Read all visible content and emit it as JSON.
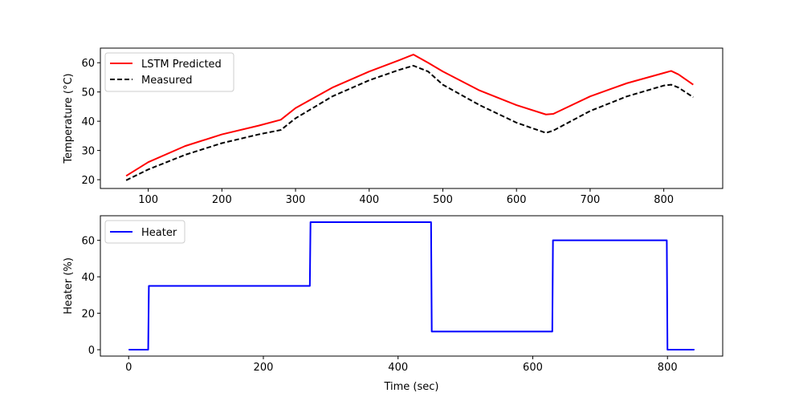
{
  "chart_data": [
    {
      "type": "line",
      "xlim": [
        35,
        880
      ],
      "ylim": [
        17,
        65
      ],
      "xticks": [
        100,
        200,
        300,
        400,
        500,
        600,
        700,
        800
      ],
      "yticks": [
        20,
        30,
        40,
        50,
        60
      ],
      "xlabel": "",
      "ylabel": "Temperature (°C)",
      "grid": false,
      "legend_position": "top-left",
      "series": [
        {
          "name": "LSTM Predicted",
          "color": "#ff0000",
          "style": "solid",
          "x": [
            70,
            100,
            150,
            200,
            250,
            280,
            300,
            350,
            400,
            440,
            460,
            480,
            500,
            550,
            600,
            640,
            650,
            700,
            750,
            800,
            810,
            820,
            840
          ],
          "y": [
            21.3,
            26.0,
            31.5,
            35.5,
            38.5,
            40.5,
            44.5,
            51.5,
            57.0,
            60.8,
            62.8,
            60.0,
            57.0,
            50.5,
            45.5,
            42.3,
            42.5,
            48.5,
            53.0,
            56.5,
            57.2,
            56.0,
            52.5
          ]
        },
        {
          "name": "Measured",
          "color": "#000000",
          "style": "dashed",
          "x": [
            70,
            100,
            150,
            200,
            250,
            280,
            300,
            350,
            400,
            440,
            460,
            480,
            500,
            550,
            600,
            640,
            650,
            700,
            750,
            800,
            810,
            820,
            840
          ],
          "y": [
            19.8,
            23.5,
            28.5,
            32.5,
            35.5,
            37.0,
            41.0,
            48.5,
            54.0,
            57.5,
            59.0,
            57.0,
            52.5,
            45.5,
            39.5,
            36.0,
            36.8,
            43.5,
            48.5,
            52.2,
            52.5,
            51.5,
            48.2
          ]
        }
      ]
    },
    {
      "type": "line",
      "xlim": [
        -42,
        882
      ],
      "ylim": [
        -3.5,
        73.5
      ],
      "xticks": [
        0,
        200,
        400,
        600,
        800
      ],
      "yticks": [
        0,
        20,
        40,
        60
      ],
      "xlabel": "Time (sec)",
      "ylabel": "Heater (%)",
      "grid": false,
      "legend_position": "top-left",
      "series": [
        {
          "name": "Heater",
          "color": "#0000ff",
          "style": "solid",
          "x": [
            0,
            29,
            30,
            269,
            270,
            449,
            450,
            629,
            630,
            799,
            800,
            840
          ],
          "y": [
            0,
            0,
            35,
            35,
            70,
            70,
            10,
            10,
            60,
            60,
            0,
            0
          ]
        }
      ]
    }
  ]
}
